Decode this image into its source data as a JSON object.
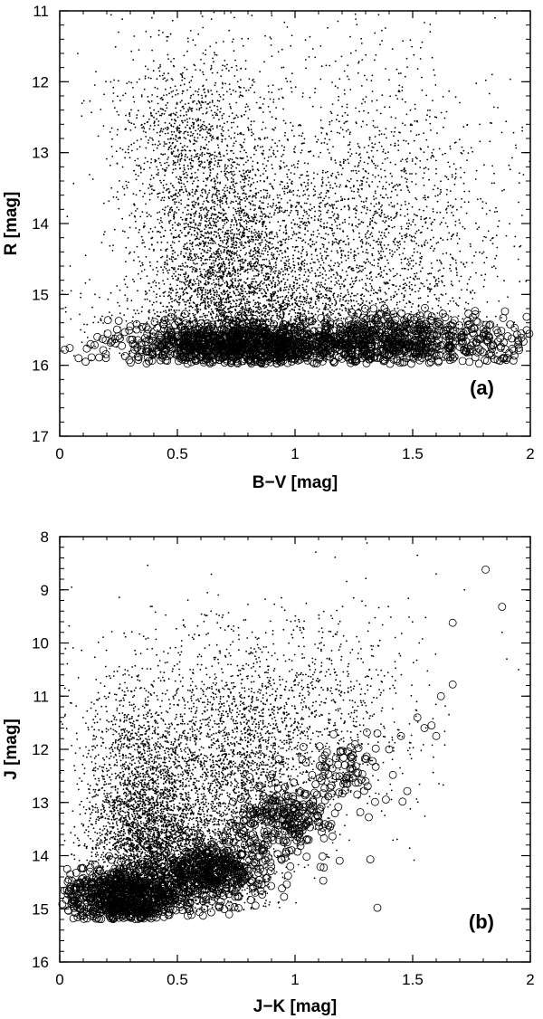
{
  "chart_data": [
    {
      "type": "scatter",
      "panel_label": "(a)",
      "xlabel": "B−V [mag]",
      "ylabel": "R [mag]",
      "xlim": [
        0,
        2
      ],
      "ylim": [
        17,
        11
      ],
      "y_inverted": true,
      "xticks": [
        "0",
        "0.5",
        "1",
        "1.5",
        "2"
      ],
      "yticks": [
        "11",
        "12",
        "13",
        "14",
        "15",
        "16",
        "17"
      ],
      "series": [
        {
          "marker": "dot",
          "clusters": [
            {
              "cx": 0.72,
              "cy": 14.6,
              "sx": 0.17,
              "sy": 0.75,
              "n": 2200
            },
            {
              "cx": 0.55,
              "cy": 12.9,
              "sx": 0.16,
              "sy": 0.75,
              "n": 1000
            },
            {
              "cx": 0.85,
              "cy": 15.4,
              "sx": 0.3,
              "sy": 0.35,
              "n": 1300
            },
            {
              "cx": 1.3,
              "cy": 14.6,
              "sx": 0.22,
              "sy": 1.15,
              "n": 1300
            },
            {
              "cx": 1.0,
              "cy": 13.8,
              "sx": 0.4,
              "sy": 1.4,
              "n": 1200
            },
            {
              "cx": 1.7,
              "cy": 14.2,
              "sx": 0.22,
              "sy": 1.3,
              "n": 250
            }
          ],
          "points": [
            [
              0.11,
              14.45
            ],
            [
              0.15,
              15.0
            ],
            [
              0.22,
              13.5
            ],
            [
              0.25,
              11.3
            ],
            [
              1.85,
              11.1
            ],
            [
              1.98,
              13.0
            ],
            [
              1.95,
              13.7
            ]
          ]
        },
        {
          "marker": "open-circle",
          "clusters": [
            {
              "cx": 0.8,
              "cy": 15.72,
              "sx": 0.26,
              "sy": 0.18,
              "n": 1100
            },
            {
              "cx": 1.45,
              "cy": 15.65,
              "sx": 0.2,
              "sy": 0.2,
              "n": 550
            },
            {
              "cx": 1.85,
              "cy": 15.7,
              "sx": 0.09,
              "sy": 0.18,
              "n": 60
            }
          ],
          "points": [
            [
              0.08,
              15.9
            ],
            [
              0.11,
              15.95
            ],
            [
              0.16,
              15.6
            ],
            [
              0.3,
              15.45
            ],
            [
              0.33,
              15.75
            ]
          ]
        }
      ]
    },
    {
      "type": "scatter",
      "panel_label": "(b)",
      "xlabel": "J−K [mag]",
      "ylabel": "J [mag]",
      "xlim": [
        0,
        2
      ],
      "ylim": [
        16,
        8
      ],
      "y_inverted": true,
      "xticks": [
        "0",
        "0.5",
        "1",
        "1.5",
        "2"
      ],
      "yticks": [
        "8",
        "9",
        "10",
        "11",
        "12",
        "13",
        "14",
        "15",
        "16"
      ],
      "series": [
        {
          "marker": "dot",
          "clusters": [
            {
              "cx": 0.38,
              "cy": 13.8,
              "sx": 0.12,
              "sy": 0.8,
              "n": 2600
            },
            {
              "cx": 0.35,
              "cy": 12.3,
              "sx": 0.13,
              "sy": 0.9,
              "n": 1100
            },
            {
              "cx": 0.75,
              "cy": 12.6,
              "sx": 0.14,
              "sy": 1.1,
              "n": 1700
            },
            {
              "cx": 0.6,
              "cy": 14.3,
              "sx": 0.12,
              "sy": 0.4,
              "n": 900
            },
            {
              "cx": 1.1,
              "cy": 11.5,
              "sx": 0.22,
              "sy": 1.0,
              "n": 800
            },
            {
              "cx": 0.7,
              "cy": 10.8,
              "sx": 0.35,
              "sy": 0.8,
              "n": 350
            }
          ],
          "points": [
            [
              1.52,
              8.35
            ],
            [
              1.6,
              8.7
            ],
            [
              1.72,
              9.0
            ],
            [
              1.88,
              9.8
            ],
            [
              1.9,
              10.3
            ],
            [
              1.95,
              10.5
            ],
            [
              1.3,
              9.3
            ]
          ]
        },
        {
          "marker": "open-circle",
          "clusters": [
            {
              "cx": 0.28,
              "cy": 14.8,
              "sx": 0.13,
              "sy": 0.28,
              "n": 800
            },
            {
              "cx": 0.65,
              "cy": 14.3,
              "sx": 0.12,
              "sy": 0.28,
              "n": 450
            },
            {
              "cx": 0.95,
              "cy": 13.3,
              "sx": 0.1,
              "sy": 0.35,
              "n": 250
            },
            {
              "cx": 1.2,
              "cy": 12.5,
              "sx": 0.1,
              "sy": 0.35,
              "n": 90
            }
          ],
          "points": [
            [
              1.81,
              8.62
            ],
            [
              1.88,
              9.32
            ],
            [
              1.67,
              9.62
            ],
            [
              1.67,
              10.78
            ],
            [
              1.62,
              11.0
            ],
            [
              1.58,
              11.55
            ],
            [
              1.6,
              11.75
            ],
            [
              1.52,
              11.4
            ],
            [
              1.55,
              11.6
            ],
            [
              1.45,
              11.75
            ],
            [
              1.35,
              11.7
            ],
            [
              1.32,
              14.07
            ],
            [
              1.35,
              14.98
            ],
            [
              1.12,
              14.47
            ],
            [
              0.98,
              14.2
            ],
            [
              0.82,
              14.62
            ],
            [
              1.3,
              12.6
            ],
            [
              1.4,
              12.0
            ]
          ]
        }
      ]
    }
  ]
}
